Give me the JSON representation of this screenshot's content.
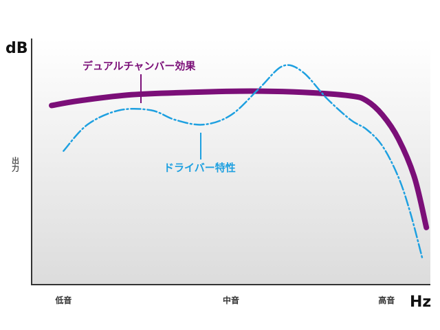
{
  "chart_data": {
    "type": "line",
    "ylabel_unit": "dB",
    "xlabel_unit": "Hz",
    "ylabel": "出力",
    "x_ticks": [
      {
        "label": "低音",
        "x": 0.08
      },
      {
        "label": "中音",
        "x": 0.5
      },
      {
        "label": "高音",
        "x": 0.89
      }
    ],
    "xlim": [
      0,
      1
    ],
    "ylim": [
      0,
      1
    ],
    "series": [
      {
        "name": "デュアルチャンバー効果",
        "color": "#7b0f78",
        "style": "solid",
        "x": [
          0.05,
          0.12,
          0.25,
          0.4,
          0.55,
          0.68,
          0.8,
          0.84,
          0.88,
          0.92,
          0.96,
          0.99
        ],
        "y": [
          0.72,
          0.74,
          0.765,
          0.775,
          0.78,
          0.775,
          0.76,
          0.74,
          0.68,
          0.58,
          0.42,
          0.21
        ]
      },
      {
        "name": "ドライバー特性",
        "color": "#1ea0e0",
        "style": "dash-dot",
        "x": [
          0.08,
          0.14,
          0.22,
          0.3,
          0.36,
          0.43,
          0.5,
          0.57,
          0.63,
          0.68,
          0.74,
          0.8,
          0.84,
          0.88,
          0.92,
          0.95,
          0.98
        ],
        "y": [
          0.53,
          0.64,
          0.7,
          0.7,
          0.66,
          0.64,
          0.68,
          0.79,
          0.885,
          0.86,
          0.75,
          0.66,
          0.62,
          0.55,
          0.42,
          0.27,
          0.08
        ]
      }
    ],
    "annotations": [
      {
        "text": "デュアルチャンバー効果",
        "series": 0
      },
      {
        "text": "ドライバー特性",
        "series": 1
      }
    ]
  }
}
